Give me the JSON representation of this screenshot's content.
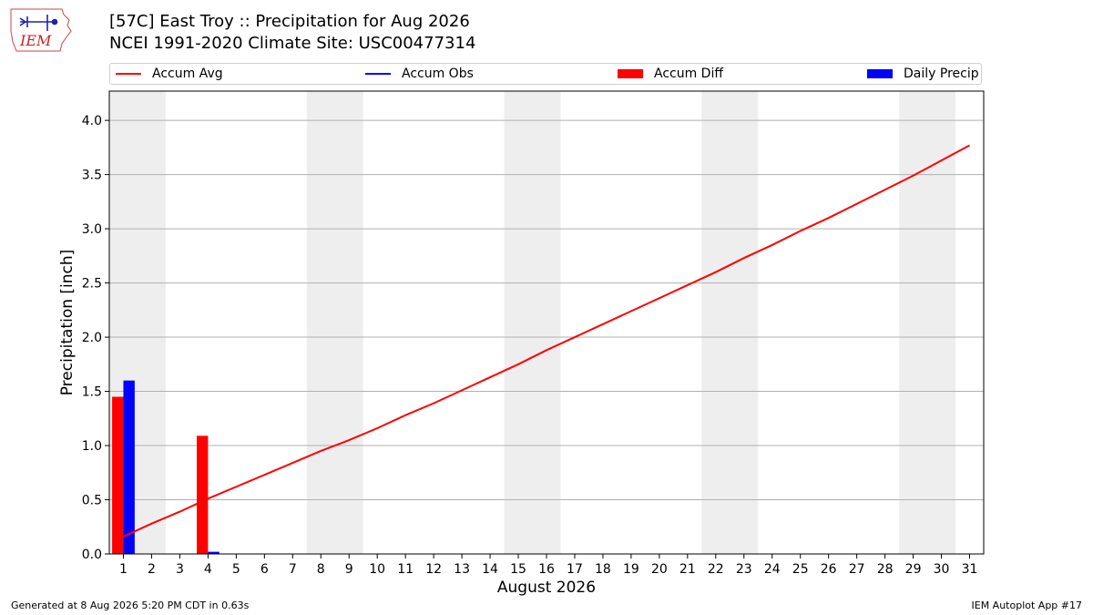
{
  "branding": {
    "logo_text": "IEM",
    "logo_icon": "iowa-state-outline-weather-station-icon"
  },
  "header": {
    "title_line1": "[57C] East Troy :: Precipitation for Aug 2026",
    "title_line2": "NCEI 1991-2020 Climate Site: USC00477314"
  },
  "legend": {
    "accum_avg": "Accum Avg",
    "accum_obs": "Accum Obs",
    "accum_diff": "Accum Diff",
    "daily_precip": "Daily Precip"
  },
  "colors": {
    "accum_avg": "#ff0000",
    "accum_obs": "#0000ff",
    "accum_diff": "#ff0000",
    "daily_precip": "#0000ff",
    "weekend_band": "#eeeeee",
    "grid": "#b0b0b0"
  },
  "chart_data": {
    "type": "line",
    "xlabel": "August 2026",
    "ylabel": "Precipitation [inch]",
    "xlim": [
      0.5,
      31.5
    ],
    "ylim": [
      0,
      4.27
    ],
    "x_ticks": [
      1,
      2,
      3,
      4,
      5,
      6,
      7,
      8,
      9,
      10,
      11,
      12,
      13,
      14,
      15,
      16,
      17,
      18,
      19,
      20,
      21,
      22,
      23,
      24,
      25,
      26,
      27,
      28,
      29,
      30,
      31
    ],
    "y_ticks": [
      0.0,
      0.5,
      1.0,
      1.5,
      2.0,
      2.5,
      3.0,
      3.5,
      4.0
    ],
    "y_tick_labels": [
      "0.0",
      "0.5",
      "1.0",
      "1.5",
      "2.0",
      "2.5",
      "3.0",
      "3.5",
      "4.0"
    ],
    "grid": "horizontal",
    "legend_placement": "top",
    "weekend_bands": [
      [
        0.5,
        2.5
      ],
      [
        7.5,
        9.5
      ],
      [
        14.5,
        16.5
      ],
      [
        21.5,
        23.5
      ],
      [
        28.5,
        30.5
      ]
    ],
    "series": [
      {
        "name": "Accum Avg",
        "kind": "line",
        "x": [
          1,
          2,
          3,
          4,
          5,
          6,
          7,
          8,
          9,
          10,
          11,
          12,
          13,
          14,
          15,
          16,
          17,
          18,
          19,
          20,
          21,
          22,
          23,
          24,
          25,
          26,
          27,
          28,
          29,
          30,
          31
        ],
        "values": [
          0.16,
          0.28,
          0.39,
          0.51,
          0.62,
          0.73,
          0.84,
          0.95,
          1.05,
          1.16,
          1.28,
          1.39,
          1.51,
          1.63,
          1.75,
          1.88,
          2.0,
          2.12,
          2.24,
          2.36,
          2.48,
          2.6,
          2.73,
          2.85,
          2.98,
          3.1,
          3.23,
          3.36,
          3.49,
          3.63,
          3.77
        ]
      },
      {
        "name": "Accum Obs",
        "kind": "line",
        "x": [],
        "values": []
      },
      {
        "name": "Accum Diff",
        "kind": "bar",
        "x": [
          1,
          4
        ],
        "values": [
          1.45,
          1.09
        ]
      },
      {
        "name": "Daily Precip",
        "kind": "bar",
        "x": [
          1,
          4
        ],
        "values": [
          1.6,
          0.02
        ]
      }
    ]
  },
  "footer": {
    "generated": "Generated at 8 Aug 2026 5:20 PM CDT in 0.63s",
    "app": "IEM Autoplot App #17"
  }
}
